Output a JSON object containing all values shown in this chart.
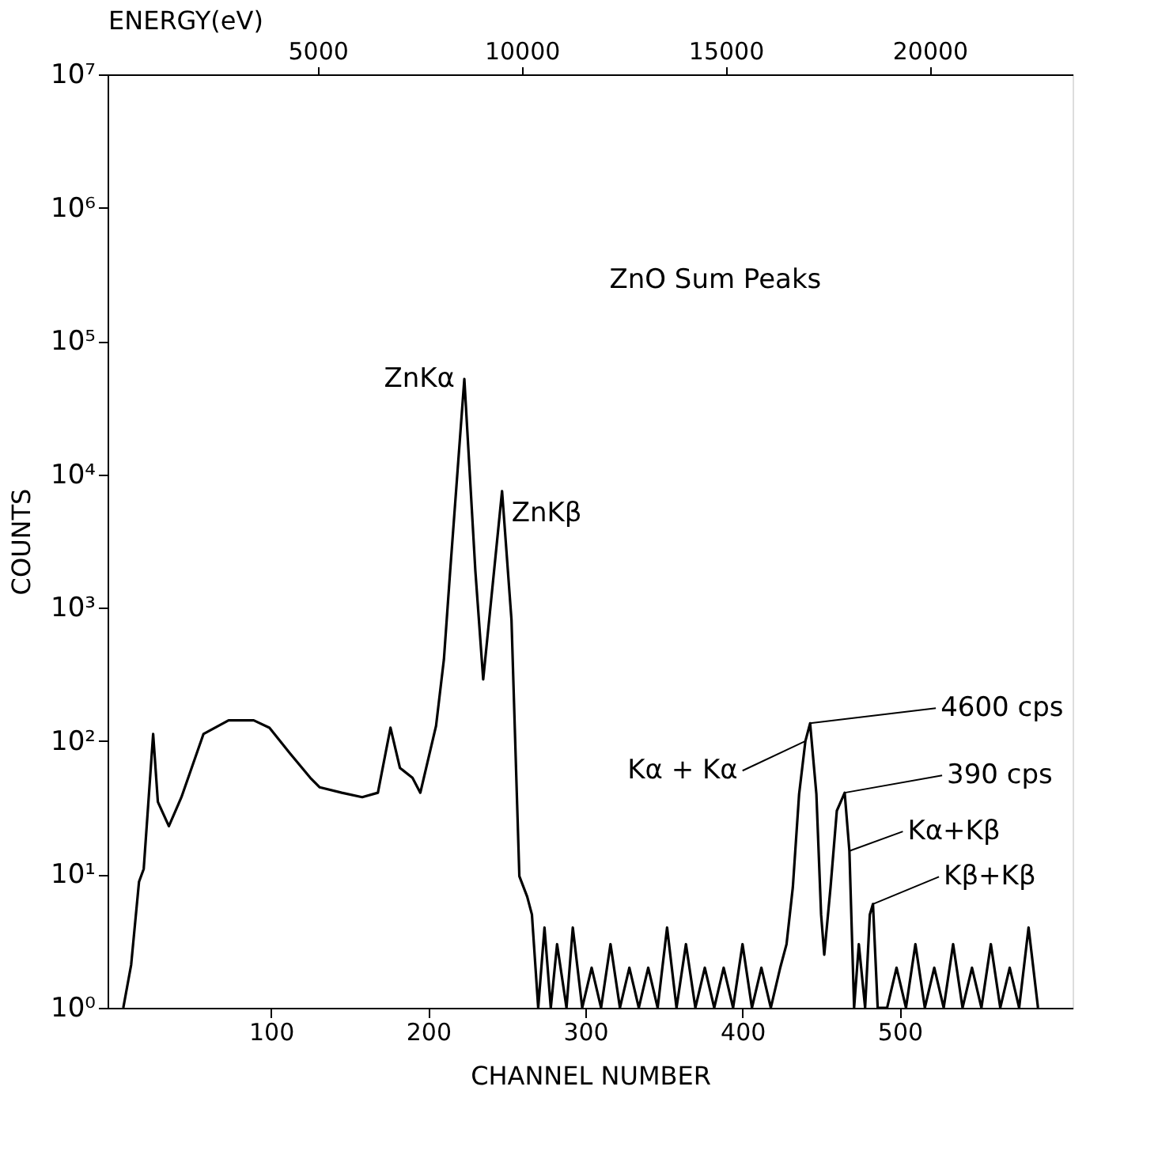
{
  "chart_data": {
    "type": "line",
    "xlabel": "CHANNEL NUMBER",
    "ylabel": "COUNTS",
    "x2label": "ENERGY(eV)",
    "log": "y",
    "grid": false,
    "marker": "none",
    "line_style": "solid",
    "xlim": [
      -4,
      610
    ],
    "xticks": [
      100,
      200,
      300,
      400,
      500
    ],
    "x2lim": [
      -150,
      23500
    ],
    "x2ticks": [
      5000,
      10000,
      15000,
      20000
    ],
    "ylim": [
      1,
      10000000
    ],
    "yticks": [
      {
        "value": 1,
        "label": "10⁰"
      },
      {
        "value": 10,
        "label": "10¹"
      },
      {
        "value": 100,
        "label": "10²"
      },
      {
        "value": 1000,
        "label": "10³"
      },
      {
        "value": 10000,
        "label": "10⁴"
      },
      {
        "value": 100000,
        "label": "10⁵"
      },
      {
        "value": 1000000,
        "label": "10⁶"
      },
      {
        "value": 10000000,
        "label": "10⁷"
      }
    ],
    "annotations": [
      "ZnO Sum Peaks",
      {
        "text": "ZnKα",
        "x": 223,
        "y": 52000
      },
      {
        "text": "ZnKβ",
        "x": 247,
        "y": 7500
      },
      {
        "text": "4600 cps",
        "x": 443,
        "y": 136
      },
      {
        "text": "Kα + Kα",
        "x": 440,
        "y": 100
      },
      {
        "text": "390 cps",
        "x": 465,
        "y": 41
      },
      {
        "text": "Kα+Kβ",
        "x": 468,
        "y": 15
      },
      {
        "text": "Kβ+Kβ",
        "x": 483,
        "y": 6
      }
    ],
    "series": [
      {
        "color": "#000000",
        "x": [
          6,
          11,
          16,
          19,
          25,
          28,
          35,
          43,
          57,
          73,
          89,
          99,
          112,
          125,
          131,
          145,
          158,
          168,
          176,
          182,
          190,
          195,
          205,
          210,
          214,
          223,
          230,
          235,
          247,
          253,
          258,
          263,
          266,
          270,
          274,
          278,
          282,
          288,
          292,
          298,
          304,
          310,
          316,
          322,
          328,
          334,
          340,
          346,
          352,
          358,
          364,
          370,
          376,
          382,
          388,
          394,
          400,
          406,
          412,
          418,
          424,
          428,
          432,
          436,
          440,
          443,
          447,
          450,
          452,
          456,
          460,
          465,
          468,
          471,
          474,
          478,
          481,
          483,
          486,
          492,
          498,
          504,
          510,
          516,
          522,
          528,
          534,
          540,
          546,
          552,
          558,
          564,
          570,
          576,
          582,
          588
        ],
        "values": [
          1,
          2.1,
          8.8,
          11,
          113,
          35,
          23,
          38,
          113,
          143,
          143,
          126,
          81,
          53,
          45,
          41,
          38,
          41,
          126,
          63,
          53,
          41,
          130,
          410,
          1900,
          52000,
          1900,
          290,
          7500,
          810,
          9.7,
          6.8,
          5,
          1,
          4,
          1,
          3,
          1,
          4,
          1,
          2,
          1,
          3,
          1,
          2,
          1,
          2,
          1,
          4,
          1,
          3,
          1,
          2,
          1,
          2,
          1,
          3,
          1,
          2,
          1,
          2,
          3,
          8,
          40,
          100,
          136,
          40,
          5,
          2.5,
          8,
          30,
          41,
          15,
          1,
          3,
          1,
          5,
          6,
          1,
          1,
          2,
          1,
          3,
          1,
          2,
          1,
          3,
          1,
          2,
          1,
          3,
          1,
          2,
          1,
          4,
          1
        ]
      }
    ]
  }
}
